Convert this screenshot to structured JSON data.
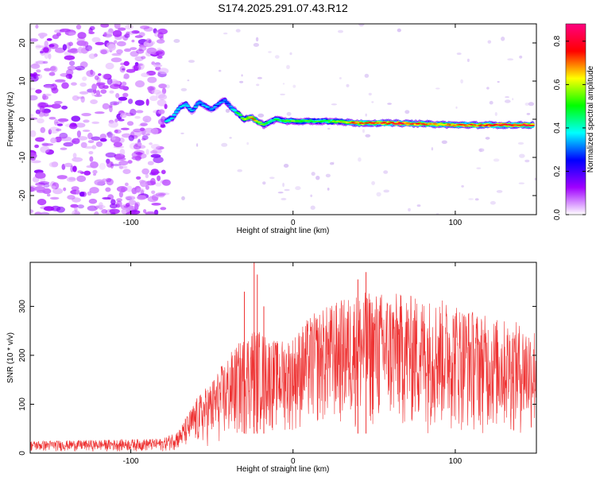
{
  "figure_title": "S174.2025.291.07.43.R12",
  "colors": {
    "snr_line": "#ee3333",
    "axis": "#000000",
    "background": "#ffffff"
  },
  "chart_data": [
    {
      "type": "heatmap",
      "title": "S174.2025.291.07.43.R12",
      "xlabel": "Height of straight line (km)",
      "ylabel": "Frequency (Hz)",
      "xlim": [
        -162,
        150
      ],
      "ylim": [
        -25,
        25
      ],
      "xticks": [
        -100,
        0,
        100
      ],
      "yticks": [
        -20,
        -10,
        0,
        10,
        20
      ],
      "colorbar": {
        "label": "Normalized spectral amplitude",
        "range": [
          0,
          0.88
        ],
        "ticks": [
          0.0,
          0.2,
          0.4,
          0.6,
          0.8
        ],
        "colormap": [
          "#ffffff",
          "#a000ff",
          "#0000ff",
          "#00ffff",
          "#00ff00",
          "#ffff00",
          "#ff0000",
          "#ff0080"
        ]
      },
      "noise_region_km": [
        -162,
        -78
      ],
      "ridge": [
        {
          "x": -78,
          "y": -0.5
        },
        {
          "x": -74,
          "y": 0.5
        },
        {
          "x": -70,
          "y": 3
        },
        {
          "x": -66,
          "y": 4
        },
        {
          "x": -62,
          "y": 2
        },
        {
          "x": -58,
          "y": 4.5
        },
        {
          "x": -54,
          "y": 3.5
        },
        {
          "x": -50,
          "y": 2.5
        },
        {
          "x": -46,
          "y": 4
        },
        {
          "x": -42,
          "y": 5
        },
        {
          "x": -38,
          "y": 3
        },
        {
          "x": -34,
          "y": 1.5
        },
        {
          "x": -30,
          "y": 0
        },
        {
          "x": -26,
          "y": 0.5
        },
        {
          "x": -22,
          "y": -0.5
        },
        {
          "x": -18,
          "y": -1.5
        },
        {
          "x": -14,
          "y": -0.5
        },
        {
          "x": -10,
          "y": 0
        },
        {
          "x": -5,
          "y": -0.5
        },
        {
          "x": 0,
          "y": -0.5
        },
        {
          "x": 10,
          "y": -0.5
        },
        {
          "x": 20,
          "y": -0.5
        },
        {
          "x": 30,
          "y": -0.7
        },
        {
          "x": 40,
          "y": -1
        },
        {
          "x": 60,
          "y": -1
        },
        {
          "x": 80,
          "y": -1.2
        },
        {
          "x": 100,
          "y": -1.5
        },
        {
          "x": 120,
          "y": -1.5
        },
        {
          "x": 148,
          "y": -1.5
        }
      ],
      "ridge_amplitude": [
        {
          "x": -78,
          "a": 0.45
        },
        {
          "x": -60,
          "a": 0.4
        },
        {
          "x": -40,
          "a": 0.35
        },
        {
          "x": -25,
          "a": 0.75
        },
        {
          "x": -15,
          "a": 0.5
        },
        {
          "x": 0,
          "a": 0.6
        },
        {
          "x": 20,
          "a": 0.55
        },
        {
          "x": 40,
          "a": 0.8
        },
        {
          "x": 70,
          "a": 0.85
        },
        {
          "x": 90,
          "a": 0.75
        },
        {
          "x": 110,
          "a": 0.8
        },
        {
          "x": 148,
          "a": 0.88
        }
      ]
    },
    {
      "type": "line",
      "xlabel": "Height of straight line (km)",
      "ylabel": "SNR (10 * v/v)",
      "xlim": [
        -162,
        150
      ],
      "ylim": [
        0,
        390
      ],
      "xticks": [
        -100,
        0,
        100
      ],
      "yticks": [
        0,
        100,
        200,
        300
      ],
      "series": [
        {
          "name": "SNR",
          "envelope_upper": [
            {
              "x": -162,
              "y": 25
            },
            {
              "x": -120,
              "y": 27
            },
            {
              "x": -80,
              "y": 30
            },
            {
              "x": -70,
              "y": 50
            },
            {
              "x": -60,
              "y": 110
            },
            {
              "x": -50,
              "y": 150
            },
            {
              "x": -40,
              "y": 200
            },
            {
              "x": -30,
              "y": 240
            },
            {
              "x": -25,
              "y": 260
            },
            {
              "x": -20,
              "y": 250
            },
            {
              "x": -10,
              "y": 230
            },
            {
              "x": 0,
              "y": 240
            },
            {
              "x": 10,
              "y": 280
            },
            {
              "x": 20,
              "y": 300
            },
            {
              "x": 40,
              "y": 330
            },
            {
              "x": 60,
              "y": 330
            },
            {
              "x": 80,
              "y": 320
            },
            {
              "x": 100,
              "y": 310
            },
            {
              "x": 120,
              "y": 280
            },
            {
              "x": 150,
              "y": 260
            }
          ],
          "envelope_lower": [
            {
              "x": -162,
              "y": 3
            },
            {
              "x": -80,
              "y": 3
            },
            {
              "x": -60,
              "y": 10
            },
            {
              "x": -40,
              "y": 15
            },
            {
              "x": -20,
              "y": 40
            },
            {
              "x": 0,
              "y": 40
            },
            {
              "x": 20,
              "y": 50
            },
            {
              "x": 60,
              "y": 40
            },
            {
              "x": 100,
              "y": 40
            },
            {
              "x": 150,
              "y": 30
            }
          ],
          "spikes": [
            {
              "x": -24,
              "y": 390
            },
            {
              "x": -22,
              "y": 365
            },
            {
              "x": -30,
              "y": 330
            },
            {
              "x": -18,
              "y": 300
            },
            {
              "x": 45,
              "y": 370
            },
            {
              "x": 40,
              "y": 355
            }
          ]
        }
      ]
    }
  ]
}
